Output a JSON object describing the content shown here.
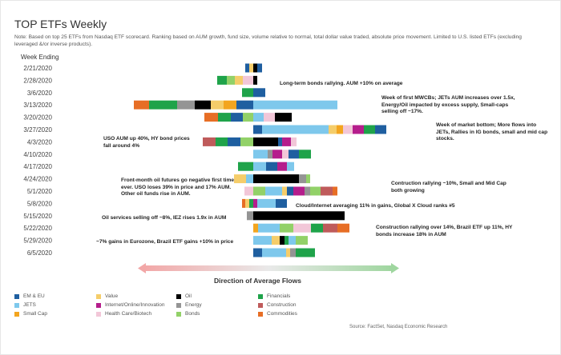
{
  "title": "TOP ETFs Weekly",
  "note": "Note: Based on top 25 ETFs from Nasdaq ETF scorecard. Ranking based on AUM growth, fund size, volume relative to normal, total dollar value traded, absolute price movement. Limited to U.S. listed ETFs (excluding leveraged &/or inverse products).",
  "week_label": "Week Ending",
  "flows_title": "Direction of Average Flows",
  "source": "Source: FactSet, Nasdaq Economic Research",
  "categories": {
    "emeu": {
      "label": "EM & EU",
      "color": "#1f5fa0"
    },
    "jets": {
      "label": "JETS",
      "color": "#7ec8ec"
    },
    "smallcap": {
      "label": "Small Cap",
      "color": "#f3a51f"
    },
    "value": {
      "label": "Value",
      "color": "#f5cd6a"
    },
    "internet": {
      "label": "Internet/Online/Innovation",
      "color": "#b51d8c"
    },
    "health": {
      "label": "Health Care/Biotech",
      "color": "#f2c7d8"
    },
    "oil": {
      "label": "Oil",
      "color": "#000000"
    },
    "energy": {
      "label": "Energy",
      "color": "#949494"
    },
    "bonds": {
      "label": "Bonds",
      "color": "#92d168"
    },
    "financials": {
      "label": "Financials",
      "color": "#1fa34a"
    },
    "construction": {
      "label": "Construction",
      "color": "#bf5b5b"
    },
    "commodities": {
      "label": "Commodities",
      "color": "#e76e25"
    }
  },
  "legend_order": [
    "emeu",
    "value",
    "oil",
    "financials",
    "jets",
    "internet",
    "energy",
    "construction",
    "smallcap",
    "health",
    "bonds",
    "commodities"
  ],
  "annotations": [
    "Long-term bonds rallying. AUM +10% on average",
    "Week of first MWCBs; JETs AUM increases over 1.5x, Energy/Oil impacted by excess supply, Small-caps selling off ~17%.",
    "Week of market bottom; More flows into JETs, Rallies in IG bonds, small and mid cap stocks.",
    "USO AUM up 40%, HY bond prices fall around 4%",
    "Front-month oil futures go negative first time ever. USO loses 39% in price and 17% AUM. Other oil funds rise in AUM.",
    "Contruction rallying ~10%, Small and Mid Cap both growing",
    "Cloud/Internet averaging 11% in gains, Global X Cloud ranks #5",
    "Oil services selling off ~8%, IEZ rises 1.9x in AUM",
    "Construction rallying over 14%, Brazil ETF up 11%, HY bonds increase 18% in AUM",
    "~7% gains in Eurozone, Brazil ETF gains +10% in price"
  ],
  "chart_data": {
    "type": "bar",
    "subtype": "diverging stacked (fund count per category, center = 0)",
    "title": "TOP ETFs Weekly",
    "xlabel": "Direction of Average Flows",
    "ylabel": "Week Ending",
    "categories": [
      "2/21/2020",
      "2/28/2020",
      "3/6/2020",
      "3/13/2020",
      "3/20/2020",
      "3/27/2020",
      "4/3/2020",
      "4/10/2020",
      "4/17/2020",
      "4/24/2020",
      "5/1/2020",
      "5/8/2020",
      "5/15/2020",
      "5/22/2020",
      "5/29/2020",
      "6/5/2020"
    ],
    "rows": [
      {
        "week": "2/21/2020",
        "left": [
          [
            "emeu",
            0.5
          ],
          [
            "value",
            0.5
          ]
        ],
        "right": [
          [
            "oil",
            0.5
          ],
          [
            "emeu",
            0.6
          ]
        ]
      },
      {
        "week": "2/28/2020",
        "left": [
          [
            "financials",
            1.2
          ],
          [
            "bonds",
            1
          ],
          [
            "value",
            1
          ],
          [
            "health",
            1.3
          ]
        ],
        "right": [
          [
            "oil",
            0.5
          ]
        ]
      },
      {
        "week": "3/6/2020",
        "left": [
          [
            "financials",
            1.4
          ]
        ],
        "right": [
          [
            "emeu",
            1.5
          ]
        ]
      },
      {
        "week": "3/13/2020",
        "left": [
          [
            "commodities",
            1.9
          ],
          [
            "financials",
            3.5
          ],
          [
            "energy",
            2.2
          ],
          [
            "oil",
            2
          ],
          [
            "value",
            1.6
          ],
          [
            "smallcap",
            1.6
          ],
          [
            "emeu",
            2.1
          ]
        ],
        "right": [
          [
            "jets",
            10.5
          ]
        ]
      },
      {
        "week": "3/20/2020",
        "left": [
          [
            "commodities",
            1.7
          ],
          [
            "financials",
            1.6
          ],
          [
            "emeu",
            1.5
          ],
          [
            "bonds",
            1.3
          ]
        ],
        "right": [
          [
            "jets",
            1.3
          ],
          [
            "health",
            1.4
          ],
          [
            "oil",
            2.1
          ]
        ]
      },
      {
        "week": "3/27/2020",
        "left": [],
        "right": [
          [
            "emeu",
            1.1
          ],
          [
            "jets",
            8.3
          ],
          [
            "value",
            1
          ],
          [
            "smallcap",
            0.8
          ],
          [
            "health",
            1.2
          ],
          [
            "internet",
            1.4
          ],
          [
            "financials",
            1.4
          ],
          [
            "emeu",
            1.4
          ]
        ]
      },
      {
        "week": "4/3/2020",
        "left": [
          [
            "construction",
            1.6
          ],
          [
            "financials",
            1.5
          ],
          [
            "emeu",
            1.6
          ],
          [
            "bonds",
            1.6
          ]
        ],
        "right": [
          [
            "oil",
            3.1
          ],
          [
            "emeu",
            0.5
          ],
          [
            "internet",
            1.1
          ],
          [
            "health",
            0.7
          ]
        ]
      },
      {
        "week": "4/10/2020",
        "left": [],
        "right": [
          [
            "jets",
            1.8
          ],
          [
            "energy",
            0.6
          ],
          [
            "internet",
            1.2
          ],
          [
            "health",
            0.8
          ],
          [
            "emeu",
            1.3
          ],
          [
            "financials",
            1.5
          ]
        ]
      },
      {
        "week": "4/17/2020",
        "left": [
          [
            "financials",
            1.9
          ]
        ],
        "right": [
          [
            "jets",
            1.6
          ],
          [
            "emeu",
            1.4
          ],
          [
            "internet",
            1.2
          ],
          [
            "jets",
            0.9
          ]
        ]
      },
      {
        "week": "4/24/2020",
        "left": [
          [
            "value",
            1.5
          ],
          [
            "jets",
            0.9
          ]
        ],
        "right": [
          [
            "oil",
            5.7
          ],
          [
            "energy",
            0.9
          ],
          [
            "bonds",
            0.5
          ]
        ]
      },
      {
        "week": "5/1/2020",
        "left": [
          [
            "health",
            1.1
          ]
        ],
        "right": [
          [
            "bonds",
            1.5
          ],
          [
            "jets",
            2.1
          ],
          [
            "value",
            0.6
          ],
          [
            "emeu",
            0.8
          ],
          [
            "internet",
            1.4
          ],
          [
            "energy",
            0.7
          ],
          [
            "bonds",
            1.3
          ],
          [
            "construction",
            1.5
          ],
          [
            "commodities",
            0.6
          ]
        ]
      },
      {
        "week": "5/8/2020",
        "left": [
          [
            "commodities",
            0.4
          ],
          [
            "value",
            0.5
          ],
          [
            "financials",
            0.5
          ]
        ],
        "right": [
          [
            "internet",
            0.5
          ],
          [
            "jets",
            2.3
          ],
          [
            "emeu",
            1.4
          ]
        ]
      },
      {
        "week": "5/15/2020",
        "left": [
          [
            "energy",
            0.8
          ]
        ],
        "right": [
          [
            "oil",
            11.4
          ]
        ]
      },
      {
        "week": "5/22/2020",
        "left": [],
        "right": [
          [
            "smallcap",
            0.6
          ],
          [
            "jets",
            2.7
          ],
          [
            "bonds",
            1.7
          ],
          [
            "health",
            2.2
          ],
          [
            "financials",
            1.5
          ],
          [
            "construction",
            1.8
          ],
          [
            "commodities",
            1.5
          ]
        ]
      },
      {
        "week": "5/29/2020",
        "left": [],
        "right": [
          [
            "jets",
            2.3
          ],
          [
            "value",
            1
          ],
          [
            "oil",
            0.6
          ],
          [
            "financials",
            0.5
          ],
          [
            "jets",
            0.9
          ],
          [
            "bonds",
            1.5
          ]
        ]
      },
      {
        "week": "6/5/2020",
        "left": [],
        "right": [
          [
            "emeu",
            1.1
          ],
          [
            "jets",
            3
          ],
          [
            "value",
            0.5
          ],
          [
            "energy",
            0.7
          ],
          [
            "financials",
            2.4
          ]
        ]
      }
    ]
  }
}
